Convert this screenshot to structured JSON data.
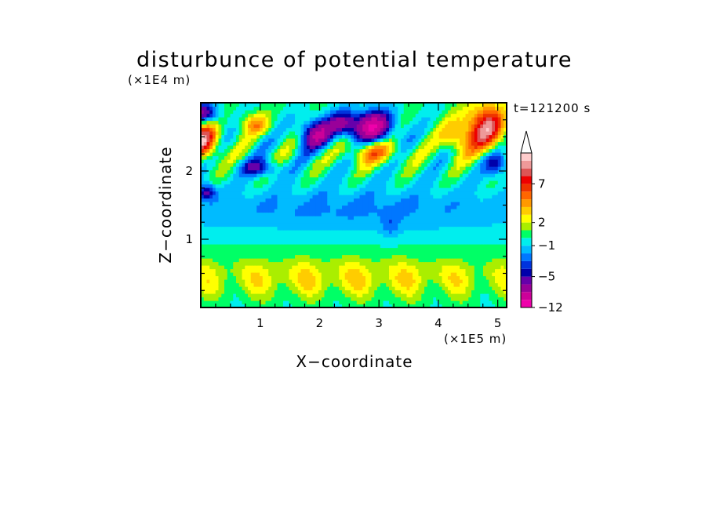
{
  "chart_data": {
    "type": "heatmap",
    "title": "disturbunce of potential temperature",
    "xlabel": "X−coordinate",
    "ylabel": "Z−coordinate",
    "x_unit": "(×1E5 m)",
    "y_unit": "(×1E4 m)",
    "time_label": "t=121200 s",
    "xlim": [
      0,
      5.15
    ],
    "ylim": [
      0,
      3.0
    ],
    "x_ticks": [
      1,
      2,
      3,
      4,
      5
    ],
    "y_ticks": [
      1,
      2
    ],
    "colorbar": {
      "levels": [
        -12,
        -10,
        -8,
        -6,
        -5,
        -4,
        -3,
        -2,
        -1,
        0,
        1,
        2,
        3,
        4,
        5,
        6,
        7,
        8,
        9,
        10
      ],
      "colors": [
        "#ee00aa",
        "#cc0099",
        "#990099",
        "#6600aa",
        "#0000aa",
        "#0033dd",
        "#0077ff",
        "#00bbff",
        "#00eeee",
        "#00ff66",
        "#aaee00",
        "#ffff00",
        "#ffcc00",
        "#ff9900",
        "#ff6600",
        "#ee3300",
        "#ee0000",
        "#dd5555",
        "#ee9999",
        "#ffcccc"
      ],
      "labels": [
        "7",
        "2",
        "−1",
        "−5",
        "−12"
      ],
      "label_values": [
        7,
        2,
        -1,
        -5,
        -12
      ],
      "extend": "max"
    },
    "grid": false
  }
}
